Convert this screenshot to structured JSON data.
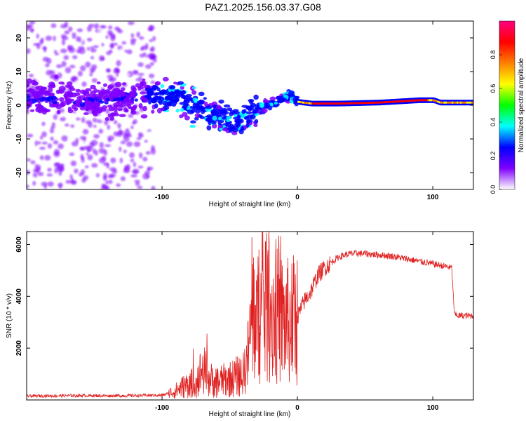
{
  "title": "PAZ1.2025.156.03.37.G08",
  "chart_data": [
    {
      "type": "heatmap",
      "xlabel": "Height of straight line (km)",
      "ylabel": "Frequency (Hz)",
      "xlim": [
        -200,
        130
      ],
      "ylim": [
        -25,
        25
      ],
      "x_ticks": [
        -100,
        0,
        100
      ],
      "y_ticks": [
        -20,
        -10,
        0,
        10,
        20
      ],
      "colorbar": {
        "label": "Normalized spectral amplitude",
        "range": [
          0,
          1
        ],
        "ticks": [
          "0.0",
          "0.2",
          "0.4",
          "0.6",
          "0.8"
        ],
        "colors": [
          "#ffffff",
          "#8000ff",
          "#0000ff",
          "#00ffff",
          "#00ff00",
          "#ffff00",
          "#ff8000",
          "#ff0000",
          "#ff0080"
        ]
      },
      "ridge": {
        "x": [
          -200,
          -180,
          -160,
          -140,
          -120,
          -105,
          -95,
          -85,
          -75,
          -65,
          -55,
          -48,
          -40,
          -30,
          -20,
          -10,
          -5,
          0,
          10,
          30,
          60,
          90,
          100,
          105,
          130
        ],
        "y": [
          2,
          2,
          1.5,
          1.5,
          2,
          3,
          3,
          2,
          0,
          -3,
          -4,
          -5,
          -3,
          -1,
          0,
          2,
          3,
          1,
          0.5,
          0.5,
          0.8,
          1.5,
          1.5,
          0.8,
          0.8
        ]
      }
    },
    {
      "type": "line",
      "xlabel": "Height of straight line (km)",
      "ylabel": "SNR (10 * v/v)",
      "xlim": [
        -200,
        130
      ],
      "ylim": [
        0,
        6500
      ],
      "x_ticks": [
        -100,
        0,
        100
      ],
      "y_ticks": [
        2000,
        4000,
        6000
      ],
      "color": "#e02020",
      "series": [
        {
          "x": [
            -200,
            -180,
            -160,
            -140,
            -120,
            -100,
            -95,
            -90,
            -85,
            -80,
            -75,
            -70,
            -65,
            -60,
            -55,
            -50,
            -45,
            -40,
            -37,
            -35,
            -33,
            -30,
            -25,
            -20,
            -15,
            -10,
            -5,
            0,
            5,
            10,
            15,
            20,
            25,
            30,
            35,
            40,
            50,
            60,
            70,
            80,
            90,
            100,
            110,
            114,
            116,
            120,
            130
          ],
          "y": [
            150,
            160,
            170,
            160,
            170,
            180,
            250,
            350,
            500,
            600,
            700,
            1200,
            800,
            700,
            750,
            800,
            900,
            1000,
            1500,
            2500,
            3500,
            3000,
            3500,
            3500,
            3200,
            3000,
            3000,
            3200,
            3800,
            4200,
            4800,
            5100,
            5300,
            5500,
            5600,
            5650,
            5650,
            5600,
            5550,
            5450,
            5350,
            5250,
            5150,
            5100,
            3300,
            3250,
            3250
          ]
        }
      ]
    }
  ]
}
